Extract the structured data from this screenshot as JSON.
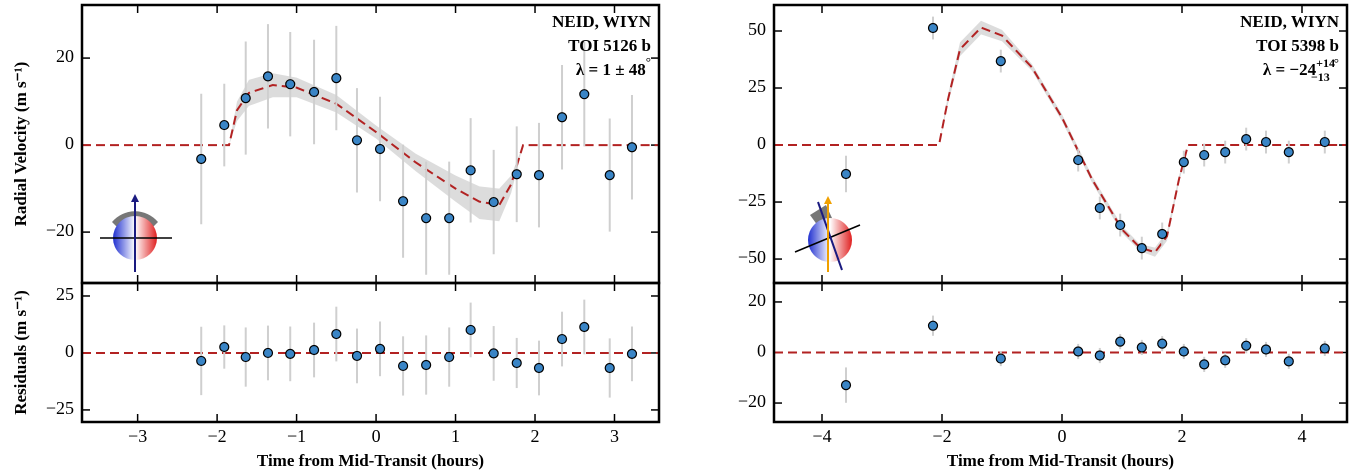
{
  "chart_data": [
    {
      "type": "scatter",
      "ylabel": "Radial Velocity (m s⁻¹)",
      "annotations": {
        "instrument": "NEID, WIYN",
        "target": "TOI 5126 b",
        "lambda": "λ = 1 ± 48",
        "lambda_unit": "°"
      },
      "xlim": [
        -3.7,
        3.56
      ],
      "ylim": [
        -31.7,
        32.2
      ],
      "yticks": [
        20,
        0,
        {
          "value": -20,
          "label": "−20"
        }
      ],
      "series": [
        {
          "role": "band",
          "color": "#dcdcdc",
          "x": [
            -3.7,
            -1.85,
            -1.75,
            -1.6,
            -1.3,
            -1.0,
            -0.5,
            0,
            0.5,
            1.0,
            1.3,
            1.55,
            1.7,
            1.85,
            3.56
          ],
          "lower": [
            0,
            0,
            5.5,
            9,
            11,
            11,
            7.5,
            1.5,
            -6,
            -13,
            -17,
            -17.5,
            -11,
            0,
            0
          ],
          "upper": [
            0,
            0,
            10,
            15,
            16.5,
            15.5,
            11.5,
            4.5,
            -2,
            -7,
            -9.5,
            -10,
            -7,
            0,
            0
          ]
        },
        {
          "role": "model",
          "color": "#b22222",
          "x": [
            -3.7,
            -1.85,
            -1.75,
            -1.6,
            -1.3,
            -1.0,
            -0.5,
            0,
            0.5,
            1.0,
            1.3,
            1.55,
            1.7,
            1.85,
            3.56
          ],
          "values": [
            0,
            0,
            8,
            12,
            13.8,
            13.2,
            9.5,
            3,
            -4,
            -10,
            -13,
            -13.8,
            -9,
            0,
            0
          ]
        },
        {
          "role": "data",
          "color": "#3a85c6",
          "x": [
            -2.2,
            -1.91,
            -1.64,
            -1.36,
            -1.08,
            -0.78,
            -0.5,
            -0.24,
            0.05,
            0.34,
            0.63,
            0.92,
            1.19,
            1.48,
            1.77,
            2.05,
            2.34,
            2.62,
            2.94,
            3.22
          ],
          "values": [
            -3.2,
            4.6,
            10.8,
            15.8,
            14.0,
            12.2,
            15.4,
            1.1,
            -0.9,
            -12.9,
            -16.8,
            -16.8,
            -5.8,
            -13.1,
            -6.7,
            -6.9,
            6.4,
            11.7,
            -6.9,
            -0.5
          ],
          "errors": [
            15,
            9.5,
            13,
            12,
            12,
            12,
            12,
            12,
            12,
            13,
            13,
            13,
            12,
            12,
            11,
            12,
            12,
            12,
            13,
            12
          ]
        }
      ]
    },
    {
      "type": "scatter",
      "xlabel": "Time from Mid-Transit (hours)",
      "ylabel": "Residuals (m s⁻¹)",
      "xlim": [
        -3.7,
        3.56
      ],
      "ylim": [
        -30.3,
        30.7
      ],
      "xticks": [
        {
          "value": -3,
          "label": "−3"
        },
        {
          "value": -2,
          "label": "−2"
        },
        {
          "value": -1,
          "label": "−1"
        },
        0,
        1,
        2,
        3
      ],
      "yticks": [
        25,
        0,
        {
          "value": -25,
          "label": "−25"
        }
      ],
      "hline": 0,
      "hline_color": "#b22222",
      "series": [
        {
          "role": "data",
          "color": "#3a85c6",
          "x": [
            -2.2,
            -1.91,
            -1.64,
            -1.36,
            -1.08,
            -0.78,
            -0.5,
            -0.24,
            0.05,
            0.34,
            0.63,
            0.92,
            1.19,
            1.48,
            1.77,
            2.05,
            2.34,
            2.62,
            2.94,
            3.22
          ],
          "values": [
            -3.5,
            2.6,
            -1.8,
            0,
            -0.4,
            1.3,
            8.3,
            -1.3,
            1.8,
            -5.7,
            -5.3,
            -1.8,
            10.1,
            -0.2,
            -4.4,
            -6.6,
            6.1,
            11.4,
            -6.6,
            -0.4
          ],
          "errors": [
            15,
            9.5,
            13,
            12,
            12,
            12,
            12,
            12,
            12,
            13,
            13,
            13,
            12,
            12,
            11,
            12,
            12,
            12,
            13,
            12
          ]
        }
      ]
    },
    {
      "type": "scatter",
      "annotations": {
        "instrument": "NEID, WIYN",
        "target": "TOI 5398 b",
        "lambda": "λ = −24",
        "lambda_upper": "+14",
        "lambda_lower": "−13",
        "lambda_unit": "°"
      },
      "xlim": [
        -4.8,
        4.75
      ],
      "ylim": [
        -60.5,
        61.4
      ],
      "yticks": [
        50,
        25,
        0,
        {
          "value": -25,
          "label": "−25"
        },
        {
          "value": -50,
          "label": "−50"
        }
      ],
      "series": [
        {
          "role": "band",
          "color": "#dcdcdc",
          "x": [
            -4.8,
            -2.05,
            -1.9,
            -1.7,
            -1.35,
            -1.0,
            -0.5,
            0,
            0.5,
            1.0,
            1.3,
            1.55,
            1.75,
            1.95,
            2.1,
            4.75
          ],
          "lower": [
            0,
            0,
            18,
            39,
            48.5,
            45.5,
            32.5,
            10.5,
            -16.5,
            -38.5,
            -46.5,
            -49,
            -42,
            -16.5,
            0,
            0
          ],
          "upper": [
            0,
            0,
            22,
            45,
            54.5,
            50.5,
            35.5,
            13.5,
            -13.5,
            -35.5,
            -43.5,
            -45,
            -38,
            -13.5,
            0,
            0
          ]
        },
        {
          "role": "model",
          "color": "#b22222",
          "x": [
            -4.8,
            -2.05,
            -1.9,
            -1.7,
            -1.35,
            -1.0,
            -0.5,
            0,
            0.5,
            1.0,
            1.3,
            1.55,
            1.75,
            1.95,
            2.1,
            4.75
          ],
          "values": [
            0,
            0,
            20,
            42,
            51.5,
            48,
            34,
            12,
            -15,
            -37,
            -45,
            -47,
            -40,
            -15,
            0,
            0
          ]
        },
        {
          "role": "data",
          "color": "#3a85c6",
          "x": [
            -3.6,
            -2.15,
            -1.02,
            0.27,
            0.63,
            0.97,
            1.33,
            1.67,
            2.03,
            2.37,
            2.72,
            3.07,
            3.4,
            3.78,
            4.38
          ],
          "values": [
            -12.7,
            51.3,
            36.8,
            -6.6,
            -27.6,
            -35.1,
            -45.2,
            -39.0,
            -7.5,
            -4.4,
            -3.1,
            2.6,
            1.3,
            -3.1,
            1.3
          ],
          "errors": [
            8,
            5,
            5,
            5,
            5,
            5,
            5,
            5,
            5,
            5,
            5,
            5,
            5,
            5,
            5
          ]
        }
      ]
    },
    {
      "type": "scatter",
      "xlabel": "Time from Mid-Transit (hours)",
      "xlim": [
        -4.8,
        4.75
      ],
      "ylim": [
        -27.5,
        27.5
      ],
      "xticks": [
        {
          "value": -4,
          "label": "−4"
        },
        {
          "value": -2,
          "label": "−2"
        },
        0,
        2,
        4
      ],
      "yticks": [
        20,
        0,
        {
          "value": -20,
          "label": "−20"
        }
      ],
      "hline": 0,
      "hline_color": "#b22222",
      "series": [
        {
          "role": "data",
          "color": "#3a85c6",
          "x": [
            -3.6,
            -2.15,
            -1.02,
            0.27,
            0.63,
            0.97,
            1.33,
            1.67,
            2.03,
            2.37,
            2.72,
            3.07,
            3.4,
            3.78,
            4.38
          ],
          "values": [
            -12.9,
            10.6,
            -2.4,
            0.4,
            -1.2,
            4.3,
            2.0,
            3.5,
            0.4,
            -4.7,
            -3.1,
            2.7,
            1.2,
            -3.5,
            1.6
          ],
          "errors": [
            7,
            4,
            3,
            3,
            3,
            3,
            3,
            3,
            3,
            3,
            3,
            3,
            3,
            3,
            3
          ]
        }
      ]
    }
  ]
}
